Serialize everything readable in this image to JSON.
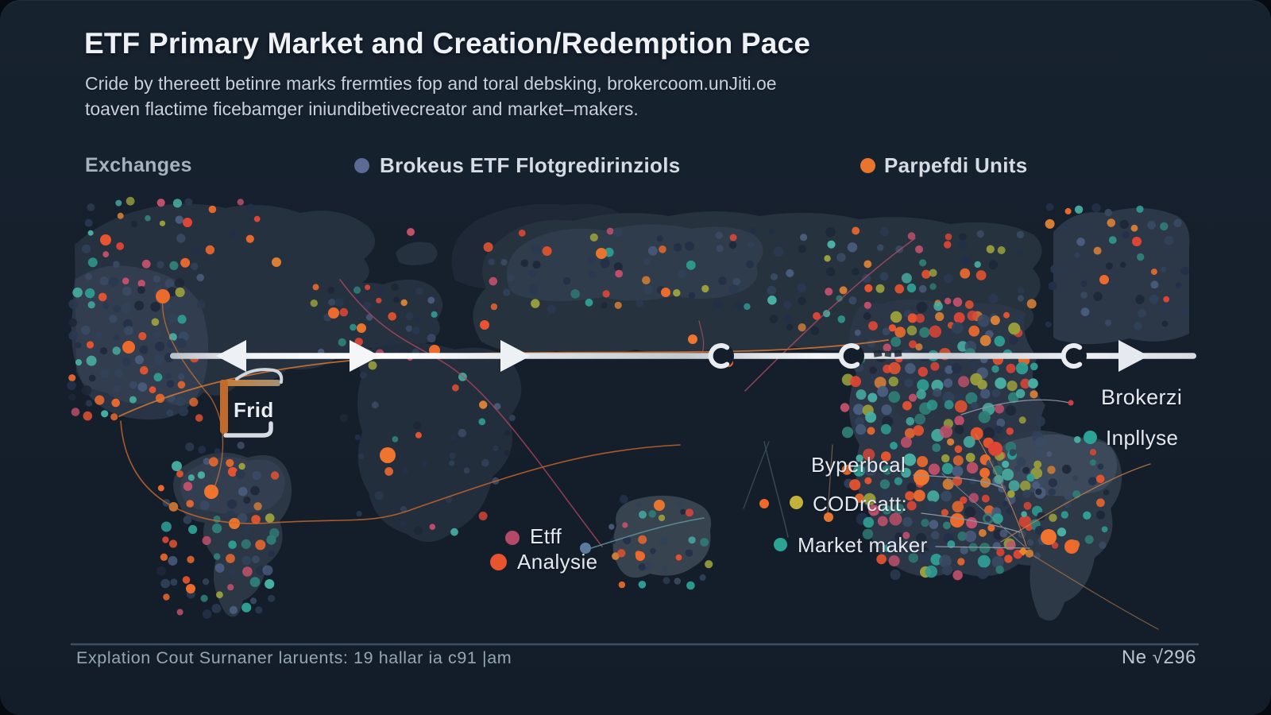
{
  "header": {
    "title": "ETF Primary Market and Creation/Redemption Pace",
    "subtitle_line1": "Cride by thereett betinre marks frermties fop and toral debsking, brokercoom.unJiti.oe",
    "subtitle_line2": "toaven flactime ficebamger iniundibetivecreator and market–makers."
  },
  "legend": {
    "exchanges": {
      "label": "Exchanges"
    },
    "brokers": {
      "label": "Brokeus ETF Flotgredirinziols",
      "dot_color": "#5c6a96"
    },
    "units": {
      "label": "Parpefdi Units",
      "dot_color": "#e8752e"
    }
  },
  "annotations": {
    "frid": "Frid",
    "brokerzi": "Brokerzi",
    "inpllyse": {
      "label": "Inpllyse",
      "dot_color": "#2ba496"
    },
    "byperbcal": "Byperbcal",
    "codrcatt": {
      "label": "CODrcatt:",
      "dot_color": "#c2b23c"
    },
    "market_maker": {
      "label": "Market maker",
      "dot_color": "#2ba496"
    },
    "etff": {
      "label": "Etff",
      "dot_color": "#b34b68"
    },
    "analysie": {
      "label": "Analysie",
      "dot_color": "#e8542f"
    }
  },
  "footer": {
    "left_text": "Explation Cout Surnaner laruents: 19 hallar ia c91 |am",
    "right_text": "Ne √296"
  },
  "map_palette": {
    "background": "#15202d",
    "landmass": "#26313f",
    "landmass_light": "#3e4c60",
    "timeline_color": "#e9edf1",
    "connection_orange": "#d9782f",
    "connection_crimson": "#b84a63",
    "halftone_muted": [
      "#1d2737",
      "#223048",
      "#2a3950",
      "#314159",
      "#3a4a63"
    ],
    "halftone_accents": [
      "#ed6a2d",
      "#e8542f",
      "#dd4636",
      "#2f9d93",
      "#48b0a4",
      "#9aa03c",
      "#c2506b",
      "#4a5d7e",
      "#d87f35",
      "#2f7d76"
    ]
  }
}
